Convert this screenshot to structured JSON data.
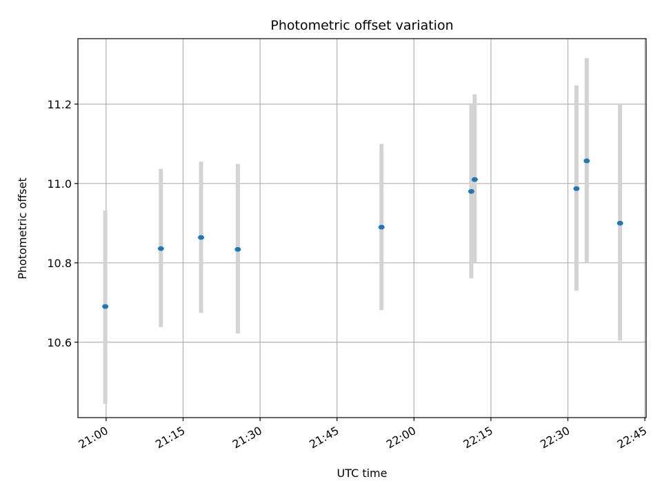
{
  "chart_data": {
    "type": "scatter",
    "title": "Photometric offset variation",
    "xlabel": "UTC time",
    "ylabel": "Photometric offset",
    "x_tick_labels": [
      "21:00",
      "21:15",
      "21:30",
      "21:45",
      "22:00",
      "22:15",
      "22:30",
      "22:45"
    ],
    "y_tick_labels": [
      "10.6",
      "10.8",
      "11.0",
      "11.2"
    ],
    "x_ticks": [
      "21:00",
      "21:15",
      "21:30",
      "21:45",
      "22:00",
      "22:15",
      "22:30",
      "22:45"
    ],
    "y_ticks": [
      10.6,
      10.8,
      11.0,
      11.2
    ],
    "xlim": [
      "20:54:30",
      "22:45:15"
    ],
    "ylim": [
      10.41,
      11.365
    ],
    "grid": true,
    "colors": {
      "point": "#1f77b4",
      "errorbar": "#d3d3d3",
      "grid": "#b0b0b0"
    },
    "points": [
      {
        "x": "20:59:50",
        "y": 10.69,
        "low": 10.445,
        "high": 10.932
      },
      {
        "x": "21:10:40",
        "y": 10.836,
        "low": 10.638,
        "high": 11.037
      },
      {
        "x": "21:18:30",
        "y": 10.864,
        "low": 10.674,
        "high": 11.055
      },
      {
        "x": "21:25:40",
        "y": 10.834,
        "low": 10.622,
        "high": 11.049
      },
      {
        "x": "21:53:40",
        "y": 10.89,
        "low": 10.681,
        "high": 11.1
      },
      {
        "x": "22:11:10",
        "y": 10.98,
        "low": 10.761,
        "high": 11.198
      },
      {
        "x": "22:11:50",
        "y": 11.01,
        "low": 10.8,
        "high": 11.225
      },
      {
        "x": "22:31:40",
        "y": 10.987,
        "low": 10.73,
        "high": 11.247
      },
      {
        "x": "22:33:40",
        "y": 11.057,
        "low": 10.8,
        "high": 11.316
      },
      {
        "x": "22:40:10",
        "y": 10.9,
        "low": 10.604,
        "high": 11.2
      }
    ]
  }
}
